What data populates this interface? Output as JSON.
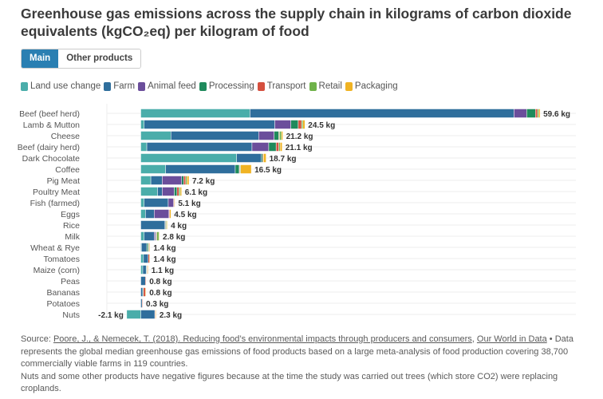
{
  "header": {
    "title": "Greenhouse gas emissions across the supply chain in kilograms of carbon dioxide equivalents (kgCO₂eq) per kilogram of food"
  },
  "tabs": [
    {
      "label": "Main",
      "active": true
    },
    {
      "label": "Other products",
      "active": false
    }
  ],
  "footer": {
    "source_prefix": "Source: ",
    "source_link": "Poore, J., & Nemecek, T. (2018). Reducing food’s environmental impacts through producers and consumers",
    "sep": ", ",
    "owid_link": "Our World in Data",
    "note1": " • Data represents the global median greenhouse gas emissions of food products based on a large meta-analysis of food production covering 38,700 commercially viable farms in 119 countries.",
    "note2": "Nuts and some other products have negative figures because at the time the study was carried out trees (which store CO2) were replacing croplands."
  },
  "chart_data": {
    "type": "bar",
    "orientation": "horizontal",
    "stacked": true,
    "title": "Greenhouse gas emissions across the supply chain in kilograms of carbon dioxide equivalents (kgCO₂eq) per kilogram of food",
    "unit": "kg",
    "legend_placement": "top-left",
    "categories": [
      "Beef (beef herd)",
      "Lamb & Mutton",
      "Cheese",
      "Beef (dairy herd)",
      "Dark Chocolate",
      "Coffee",
      "Pig Meat",
      "Poultry Meat",
      "Fish (farmed)",
      "Eggs",
      "Rice",
      "Milk",
      "Wheat & Rye",
      "Tomatoes",
      "Maize (corn)",
      "Peas",
      "Bananas",
      "Potatoes",
      "Nuts"
    ],
    "series": [
      {
        "name": "Land use change",
        "color": "#4aadaa",
        "values": [
          16.3,
          0.5,
          4.5,
          0.9,
          14.3,
          3.7,
          1.5,
          2.5,
          0.5,
          0.7,
          0,
          0.5,
          0.1,
          0.4,
          0.3,
          0,
          0,
          0,
          -2.1
        ]
      },
      {
        "name": "Farm",
        "color": "#2f6e9c",
        "values": [
          39.4,
          19.5,
          13.1,
          15.7,
          3.7,
          10.4,
          1.7,
          0.7,
          3.6,
          1.3,
          3.6,
          1.5,
          0.8,
          0.7,
          0.5,
          0.7,
          0.3,
          0.2,
          2.1
        ]
      },
      {
        "name": "Animal feed",
        "color": "#6b4e9b",
        "values": [
          1.9,
          2.4,
          2.3,
          2.5,
          0,
          0,
          2.9,
          1.8,
          0.8,
          2.2,
          0,
          0.2,
          0,
          0,
          0,
          0,
          0,
          0,
          0
        ]
      },
      {
        "name": "Processing",
        "color": "#1f8a5c",
        "values": [
          1.3,
          1.1,
          0.7,
          1.1,
          0.2,
          0.6,
          0.3,
          0.4,
          0,
          0,
          0.1,
          0.1,
          0.2,
          0,
          0.1,
          0,
          0.1,
          0,
          0
        ]
      },
      {
        "name": "Transport",
        "color": "#d5503f",
        "values": [
          0.3,
          0.5,
          0.1,
          0.4,
          0.1,
          0.1,
          0.3,
          0.3,
          0.1,
          0.1,
          0.1,
          0.1,
          0.1,
          0.2,
          0.1,
          0.1,
          0.3,
          0.1,
          0.1
        ]
      },
      {
        "name": "Retail",
        "color": "#6fb24a",
        "values": [
          0.2,
          0.2,
          0.3,
          0.2,
          0,
          0.1,
          0.2,
          0.2,
          0,
          0,
          0.1,
          0.3,
          0.1,
          0,
          0,
          0,
          0,
          0,
          0
        ]
      },
      {
        "name": "Packaging",
        "color": "#f0b323",
        "values": [
          0.2,
          0.3,
          0.2,
          0.3,
          0.4,
          1.6,
          0.3,
          0.2,
          0.1,
          0.2,
          0.1,
          0.1,
          0.1,
          0.1,
          0.1,
          0,
          0.1,
          0,
          0.1
        ]
      }
    ],
    "total_labels": [
      "59.6 kg",
      "24.5 kg",
      "21.2 kg",
      "21.1 kg",
      "18.7 kg",
      "16.5 kg",
      "7.2 kg",
      "6.1 kg",
      "5.1 kg",
      "4.5 kg",
      "4 kg",
      "2.8 kg",
      "1.4 kg",
      "1.4 kg",
      "1.1 kg",
      "0.8 kg",
      "0.8 kg",
      "0.3 kg",
      "2.3 kg"
    ],
    "negative_labels": {
      "Nuts": "-2.1 kg"
    }
  }
}
